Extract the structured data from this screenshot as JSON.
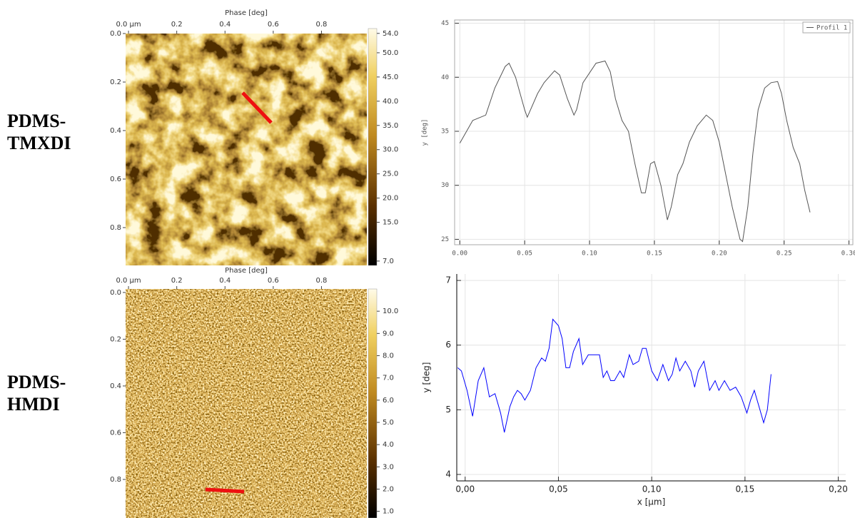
{
  "row_labels": [
    [
      "PDMS-",
      "TMXDI"
    ],
    [
      "PDMS-",
      "HMDI"
    ]
  ],
  "chart_data": [
    {
      "type": "image",
      "title": "Phase [deg]",
      "xlim": [
        -0.012,
        0.988
      ],
      "xticks": [
        {
          "value": 0,
          "label": "0.0 µm"
        },
        0.2,
        0.4,
        0.6,
        0.8
      ],
      "ylim": [
        0,
        0.956
      ],
      "yticks": [
        {
          "value": 0,
          "label": "0.0"
        },
        0.2,
        0.4,
        0.6,
        0.8
      ],
      "colorbar": {
        "lim": [
          6.1,
          55.0
        ],
        "ticks": [
          {
            "value": 54,
            "label": "54.0"
          },
          {
            "value": 50,
            "label": "50.0"
          },
          {
            "value": 45,
            "label": "45.0"
          },
          {
            "value": 40,
            "label": "40.0"
          },
          {
            "value": 35,
            "label": "35.0"
          },
          {
            "value": 30,
            "label": "30.0"
          },
          {
            "value": 25,
            "label": "25.0"
          },
          {
            "value": 20,
            "label": "20.0"
          },
          {
            "value": 15,
            "label": "15.0"
          },
          {
            "value": 7,
            "label": "7.0"
          }
        ]
      }
    },
    {
      "type": "image",
      "title": "Phase [deg]",
      "xlim": [
        -0.012,
        0.988
      ],
      "xticks": [
        {
          "value": 0,
          "label": "0.0 µm"
        },
        0.2,
        0.4,
        0.6,
        0.8
      ],
      "ylim": [
        -0.015,
        0.965
      ],
      "yticks": [
        {
          "value": 0,
          "label": "0.0"
        },
        0.2,
        0.4,
        0.6,
        0.8
      ],
      "colorbar": {
        "lim": [
          0.7,
          11.0
        ],
        "ticks": [
          {
            "value": 10,
            "label": "10.0"
          },
          {
            "value": 9,
            "label": "9.0"
          },
          {
            "value": 8,
            "label": "8.0"
          },
          {
            "value": 7,
            "label": "7.0"
          },
          {
            "value": 6,
            "label": "6.0"
          },
          {
            "value": 5,
            "label": "5.0"
          },
          {
            "value": 4,
            "label": "4.0"
          },
          {
            "value": 3,
            "label": "3.0"
          },
          {
            "value": 2,
            "label": "2.0"
          },
          {
            "value": 1,
            "label": "1.0"
          }
        ]
      }
    },
    {
      "type": "line",
      "ylabel": "y [deg]",
      "grid": true,
      "legend": "upper right",
      "xlim": [
        -0.004,
        0.303
      ],
      "xticks": [
        {
          "value": 0,
          "label": "0.00"
        },
        {
          "value": 0.05,
          "label": "0.05"
        },
        {
          "value": 0.1,
          "label": "0.10"
        },
        {
          "value": 0.15,
          "label": "0.15"
        },
        {
          "value": 0.2,
          "label": "0.20"
        },
        {
          "value": 0.25,
          "label": "0.25"
        },
        {
          "value": 0.3,
          "label": "0.30"
        }
      ],
      "ylim": [
        24.5,
        45.3
      ],
      "yticks": [
        25,
        30,
        35,
        40,
        45
      ],
      "x": [
        0,
        0.01,
        0.02,
        0.027,
        0.035,
        0.038,
        0.043,
        0.05,
        0.052,
        0.06,
        0.065,
        0.073,
        0.077,
        0.083,
        0.088,
        0.09,
        0.095,
        0.105,
        0.112,
        0.116,
        0.12,
        0.125,
        0.13,
        0.135,
        0.14,
        0.143,
        0.147,
        0.15,
        0.155,
        0.16,
        0.163,
        0.168,
        0.172,
        0.177,
        0.183,
        0.19,
        0.195,
        0.2,
        0.205,
        0.21,
        0.216,
        0.218,
        0.222,
        0.226,
        0.23,
        0.235,
        0.24,
        0.245,
        0.248,
        0.252,
        0.257,
        0.262,
        0.266,
        0.27
      ],
      "series": [
        {
          "name": "Profil 1",
          "color": "#555555",
          "values": [
            33.9,
            36,
            36.5,
            39,
            41,
            41.3,
            40,
            37,
            36.3,
            38.5,
            39.5,
            40.6,
            40.2,
            38,
            36.5,
            37,
            39.5,
            41.3,
            41.5,
            40.5,
            38,
            36,
            35,
            32,
            29.3,
            29.3,
            32,
            32.2,
            30,
            26.8,
            28,
            31,
            32,
            34,
            35.5,
            36.5,
            36,
            34,
            31,
            28,
            25,
            24.8,
            28,
            33,
            37,
            39,
            39.5,
            39.6,
            38.5,
            36,
            33.5,
            32,
            29.5,
            27.5
          ]
        }
      ]
    },
    {
      "type": "line",
      "xlabel": "x [µm]",
      "ylabel": "y [deg]",
      "grid": true,
      "xlim": [
        -0.0045,
        0.204
      ],
      "xticks": [
        {
          "value": 0,
          "label": "0,00"
        },
        {
          "value": 0.05,
          "label": "0,05"
        },
        {
          "value": 0.1,
          "label": "0,10"
        },
        {
          "value": 0.15,
          "label": "0,15"
        },
        {
          "value": 0.2,
          "label": "0,20"
        }
      ],
      "ylim": [
        3.9,
        7.1
      ],
      "yticks": [
        4,
        5,
        6,
        7
      ],
      "x": [
        -0.004,
        -0.002,
        0.001,
        0.004,
        0.007,
        0.01,
        0.013,
        0.016,
        0.019,
        0.021,
        0.024,
        0.026,
        0.028,
        0.03,
        0.032,
        0.035,
        0.038,
        0.041,
        0.043,
        0.045,
        0.047,
        0.05,
        0.052,
        0.054,
        0.056,
        0.058,
        0.061,
        0.063,
        0.066,
        0.069,
        0.072,
        0.074,
        0.076,
        0.078,
        0.08,
        0.083,
        0.085,
        0.088,
        0.09,
        0.093,
        0.095,
        0.097,
        0.1,
        0.103,
        0.106,
        0.109,
        0.111,
        0.113,
        0.115,
        0.118,
        0.121,
        0.123,
        0.125,
        0.128,
        0.131,
        0.134,
        0.136,
        0.139,
        0.142,
        0.145,
        0.148,
        0.151,
        0.153,
        0.155,
        0.158,
        0.16,
        0.162,
        0.164
      ],
      "series": [
        {
          "color": "#0000ff",
          "values": [
            5.65,
            5.6,
            5.3,
            4.9,
            5.45,
            5.65,
            5.2,
            5.25,
            4.95,
            4.65,
            5.05,
            5.2,
            5.3,
            5.25,
            5.15,
            5.3,
            5.65,
            5.8,
            5.75,
            5.95,
            6.4,
            6.3,
            6.1,
            5.65,
            5.65,
            5.9,
            6.1,
            5.7,
            5.85,
            5.85,
            5.85,
            5.5,
            5.6,
            5.45,
            5.45,
            5.6,
            5.5,
            5.85,
            5.7,
            5.75,
            5.95,
            5.95,
            5.6,
            5.45,
            5.7,
            5.45,
            5.55,
            5.8,
            5.6,
            5.75,
            5.6,
            5.35,
            5.6,
            5.75,
            5.3,
            5.45,
            5.3,
            5.45,
            5.3,
            5.35,
            5.2,
            4.95,
            5.15,
            5.3,
            5.0,
            4.8,
            5.0,
            5.55
          ]
        }
      ]
    }
  ]
}
